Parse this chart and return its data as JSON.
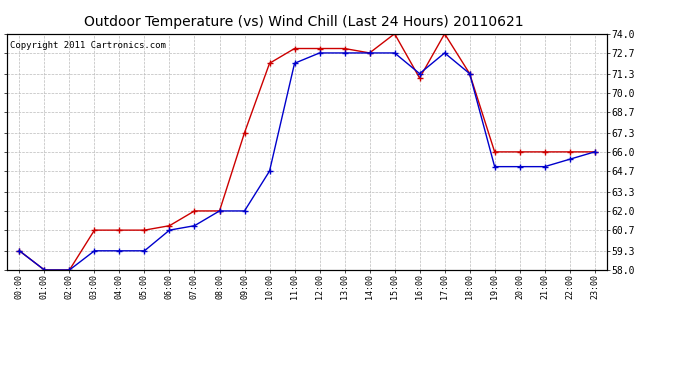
{
  "title": "Outdoor Temperature (vs) Wind Chill (Last 24 Hours) 20110621",
  "copyright": "Copyright 2011 Cartronics.com",
  "hours": [
    "00:00",
    "01:00",
    "02:00",
    "03:00",
    "04:00",
    "05:00",
    "06:00",
    "07:00",
    "08:00",
    "09:00",
    "10:00",
    "11:00",
    "12:00",
    "13:00",
    "14:00",
    "15:00",
    "16:00",
    "17:00",
    "18:00",
    "19:00",
    "20:00",
    "21:00",
    "22:00",
    "23:00"
  ],
  "temp_red": [
    59.3,
    58.0,
    58.0,
    60.7,
    60.7,
    60.7,
    61.0,
    62.0,
    62.0,
    67.3,
    72.0,
    73.0,
    73.0,
    73.0,
    72.7,
    74.0,
    71.0,
    74.0,
    71.3,
    66.0,
    66.0,
    66.0,
    66.0,
    66.0
  ],
  "temp_blue": [
    59.3,
    58.0,
    58.0,
    59.3,
    59.3,
    59.3,
    60.7,
    61.0,
    62.0,
    62.0,
    64.7,
    72.0,
    72.7,
    72.7,
    72.7,
    72.7,
    71.3,
    72.7,
    71.3,
    65.0,
    65.0,
    65.0,
    65.5,
    66.0
  ],
  "ylim_min": 58.0,
  "ylim_max": 74.0,
  "yticks": [
    58.0,
    59.3,
    60.7,
    62.0,
    63.3,
    64.7,
    66.0,
    67.3,
    68.7,
    70.0,
    71.3,
    72.7,
    74.0
  ],
  "red_color": "#cc0000",
  "blue_color": "#0000cc",
  "bg_color": "#ffffff",
  "grid_color": "#bbbbbb",
  "title_fontsize": 10,
  "copyright_fontsize": 6.5
}
